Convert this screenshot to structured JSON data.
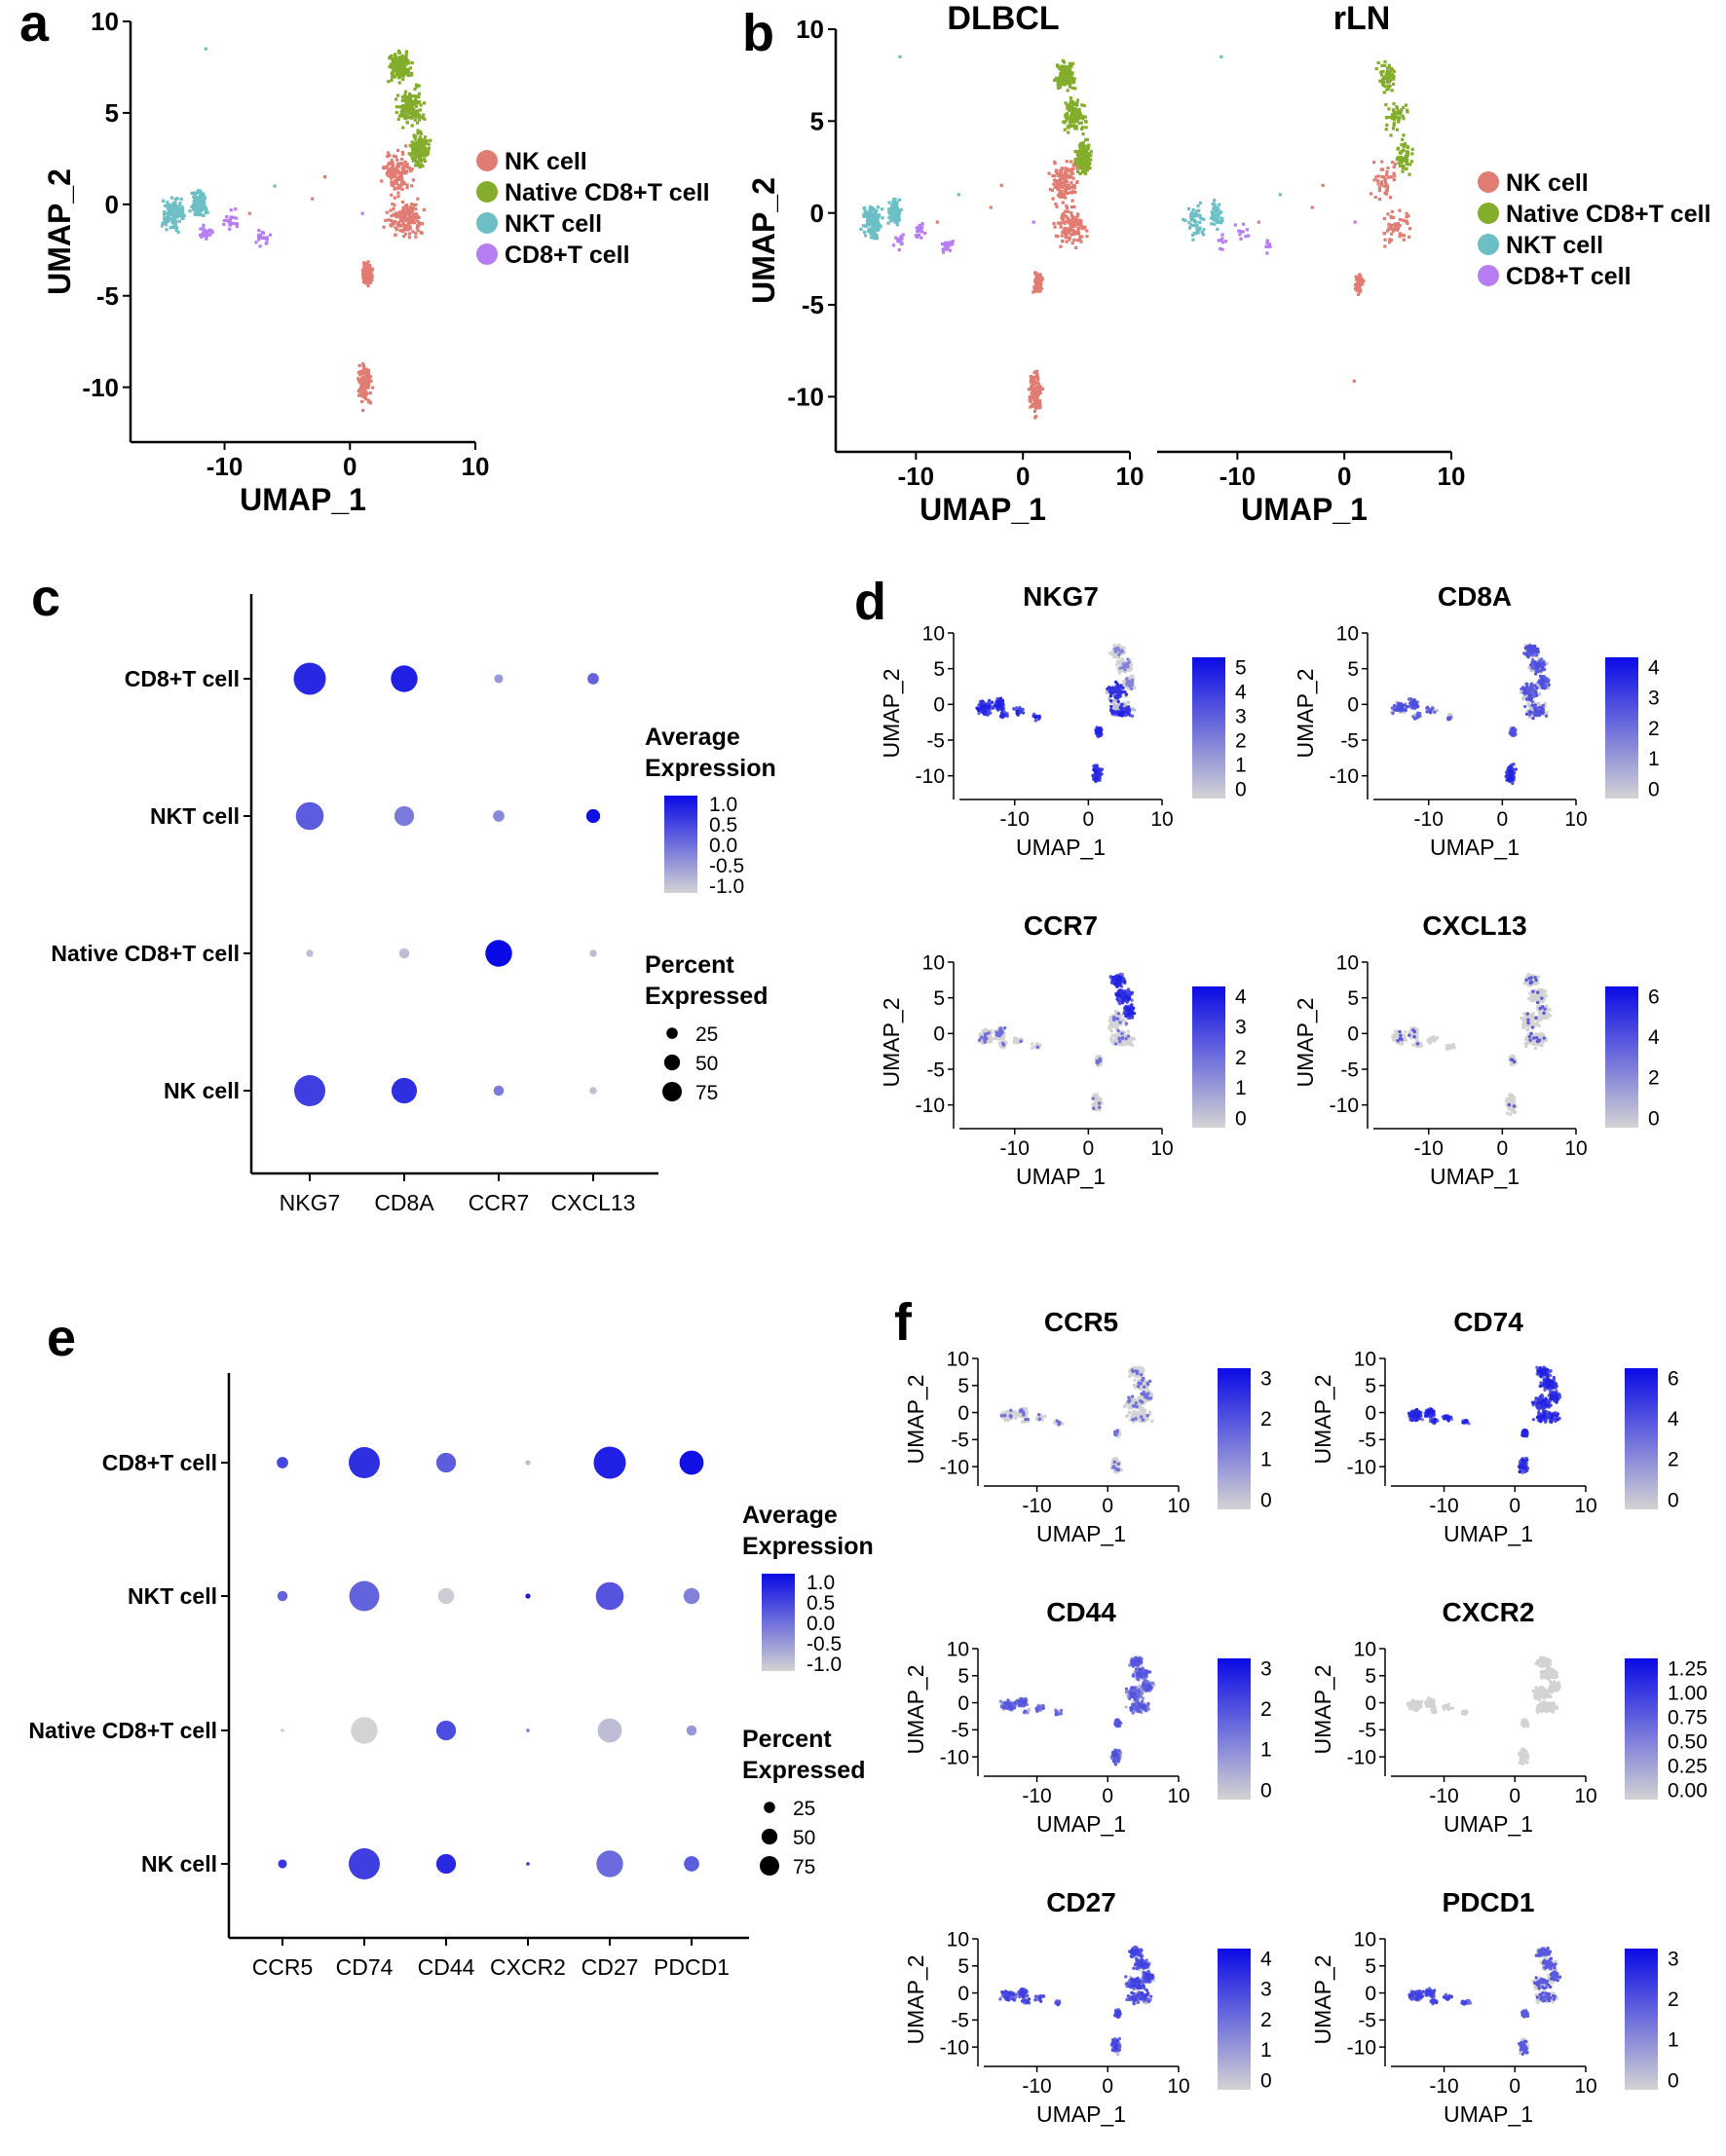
{
  "figure": {
    "panel_letters": [
      "a",
      "b",
      "c",
      "d",
      "e",
      "f"
    ]
  },
  "colors": {
    "NK cell": "#e07c72",
    "Native CD8+T cell": "#83ad2b",
    "NKT cell": "#6cbfc4",
    "CD8+T cell": "#b67ef2",
    "expr_low": "#d3d3d3",
    "expr_high": "#0a0ae6"
  },
  "chart_data": [
    {
      "panel": "a",
      "type": "scatter",
      "xlabel": "UMAP_1",
      "ylabel": "UMAP_2",
      "xticks": [
        -10,
        0,
        10
      ],
      "yticks": [
        -10,
        -5,
        0,
        5,
        10
      ],
      "xlim": [
        -17.5,
        10
      ],
      "ylim": [
        -13,
        10
      ],
      "legend": [
        "NK cell",
        "Native CD8+T cell",
        "NKT cell",
        "CD8+T cell"
      ],
      "legend_position": "right"
    },
    {
      "panel": "b",
      "type": "scatter",
      "facets": [
        "DLBCL",
        "rLN"
      ],
      "xlabel": "UMAP_1",
      "ylabel": "UMAP_2",
      "xticks": [
        -10,
        0,
        10
      ],
      "yticks": [
        -10,
        -5,
        0,
        5,
        10
      ],
      "xlim": [
        -17.5,
        10
      ],
      "ylim": [
        -13,
        10
      ],
      "legend": [
        "NK cell",
        "Native CD8+T cell",
        "NKT cell",
        "CD8+T cell"
      ],
      "legend_position": "right"
    },
    {
      "panel": "c",
      "type": "scatter",
      "subtype": "dotplot",
      "genes": [
        "NKG7",
        "CD8A",
        "CCR7",
        "CXCL13"
      ],
      "groups": [
        "CD8+T cell",
        "NKT cell",
        "Native CD8+T cell",
        "NK cell"
      ],
      "avg_expression": [
        [
          1.0,
          1.1,
          -0.5,
          0.2
        ],
        [
          0.3,
          -0.1,
          -0.3,
          1.3
        ],
        [
          -1.0,
          -1.0,
          1.4,
          -1.0
        ],
        [
          0.7,
          0.9,
          -0.1,
          -1.0
        ]
      ],
      "pct_expressed": [
        [
          80,
          55,
          6,
          10
        ],
        [
          60,
          30,
          10,
          15
        ],
        [
          4,
          8,
          55,
          4
        ],
        [
          75,
          50,
          8,
          4
        ]
      ],
      "colorbar_title": [
        "Average",
        "Expression"
      ],
      "colorbar_ticks": [
        "1.0",
        "0.5",
        "0.0",
        "-0.5",
        "-1.0"
      ],
      "size_title": [
        "Percent",
        "Expressed"
      ],
      "size_ticks": [
        "25",
        "50",
        "75"
      ]
    },
    {
      "panel": "d",
      "type": "scatter",
      "subtype": "feature_plot",
      "xlabel": "UMAP_1",
      "ylabel": "UMAP_2",
      "xticks": [
        "-10",
        "0",
        "10"
      ],
      "yticks": [
        "10",
        "5",
        "0",
        "-5",
        "-10"
      ],
      "plots": [
        {
          "gene": "NKG7",
          "colorbar_ticks": [
            "5",
            "4",
            "3",
            "2",
            "1",
            "0"
          ],
          "pattern": "NKG7"
        },
        {
          "gene": "CD8A",
          "colorbar_ticks": [
            "4",
            "3",
            "2",
            "1",
            "0"
          ],
          "pattern": "CD8A"
        },
        {
          "gene": "CCR7",
          "colorbar_ticks": [
            "4",
            "3",
            "2",
            "1",
            "0"
          ],
          "pattern": "CCR7"
        },
        {
          "gene": "CXCL13",
          "colorbar_ticks": [
            "6",
            "4",
            "2",
            "0"
          ],
          "pattern": "CXCL13"
        }
      ]
    },
    {
      "panel": "e",
      "type": "scatter",
      "subtype": "dotplot",
      "genes": [
        "CCR5",
        "CD74",
        "CD44",
        "CXCR2",
        "CD27",
        "PDCD1"
      ],
      "groups": [
        "CD8+T cell",
        "NKT cell",
        "Native CD8+T cell",
        "NK cell"
      ],
      "avg_expression": [
        [
          0.6,
          0.9,
          0.3,
          -1.0,
          1.1,
          1.3
        ],
        [
          0.2,
          0.2,
          -1.2,
          1.2,
          0.4,
          -0.2
        ],
        [
          -1.2,
          -1.3,
          0.5,
          -0.2,
          -1.0,
          -0.5
        ],
        [
          0.8,
          0.7,
          1.0,
          0.6,
          0.1,
          0.3
        ]
      ],
      "pct_expressed": [
        [
          10,
          75,
          30,
          2,
          80,
          45
        ],
        [
          8,
          70,
          20,
          2,
          60,
          20
        ],
        [
          1,
          55,
          30,
          1,
          45,
          8
        ],
        [
          6,
          75,
          30,
          1,
          55,
          18
        ]
      ],
      "colorbar_title": [
        "Average",
        "Expression"
      ],
      "colorbar_ticks": [
        "1.0",
        "0.5",
        "0.0",
        "-0.5",
        "-1.0"
      ],
      "size_title": [
        "Percent",
        "Expressed"
      ],
      "size_ticks": [
        "25",
        "50",
        "75"
      ]
    },
    {
      "panel": "f",
      "type": "scatter",
      "subtype": "feature_plot",
      "xlabel": "UMAP_1",
      "ylabel": "UMAP_2",
      "xticks": [
        "-10",
        "0",
        "10"
      ],
      "yticks": [
        "10",
        "5",
        "0",
        "-5",
        "-10"
      ],
      "plots": [
        {
          "gene": "CCR5",
          "colorbar_ticks": [
            "3",
            "2",
            "1",
            "0"
          ],
          "pattern": "CCR5"
        },
        {
          "gene": "CD74",
          "colorbar_ticks": [
            "6",
            "4",
            "2",
            "0"
          ],
          "pattern": "CD74"
        },
        {
          "gene": "CD44",
          "colorbar_ticks": [
            "3",
            "2",
            "1",
            "0"
          ],
          "pattern": "CD44"
        },
        {
          "gene": "CXCR2",
          "colorbar_ticks": [
            "1.25",
            "1.00",
            "0.75",
            "0.50",
            "0.25",
            "0.00"
          ],
          "pattern": "CXCR2"
        },
        {
          "gene": "CD27",
          "colorbar_ticks": [
            "4",
            "3",
            "2",
            "1",
            "0"
          ],
          "pattern": "CD27"
        },
        {
          "gene": "PDCD1",
          "colorbar_ticks": [
            "3",
            "2",
            "1",
            "0"
          ],
          "pattern": "PDCD1"
        }
      ]
    }
  ]
}
